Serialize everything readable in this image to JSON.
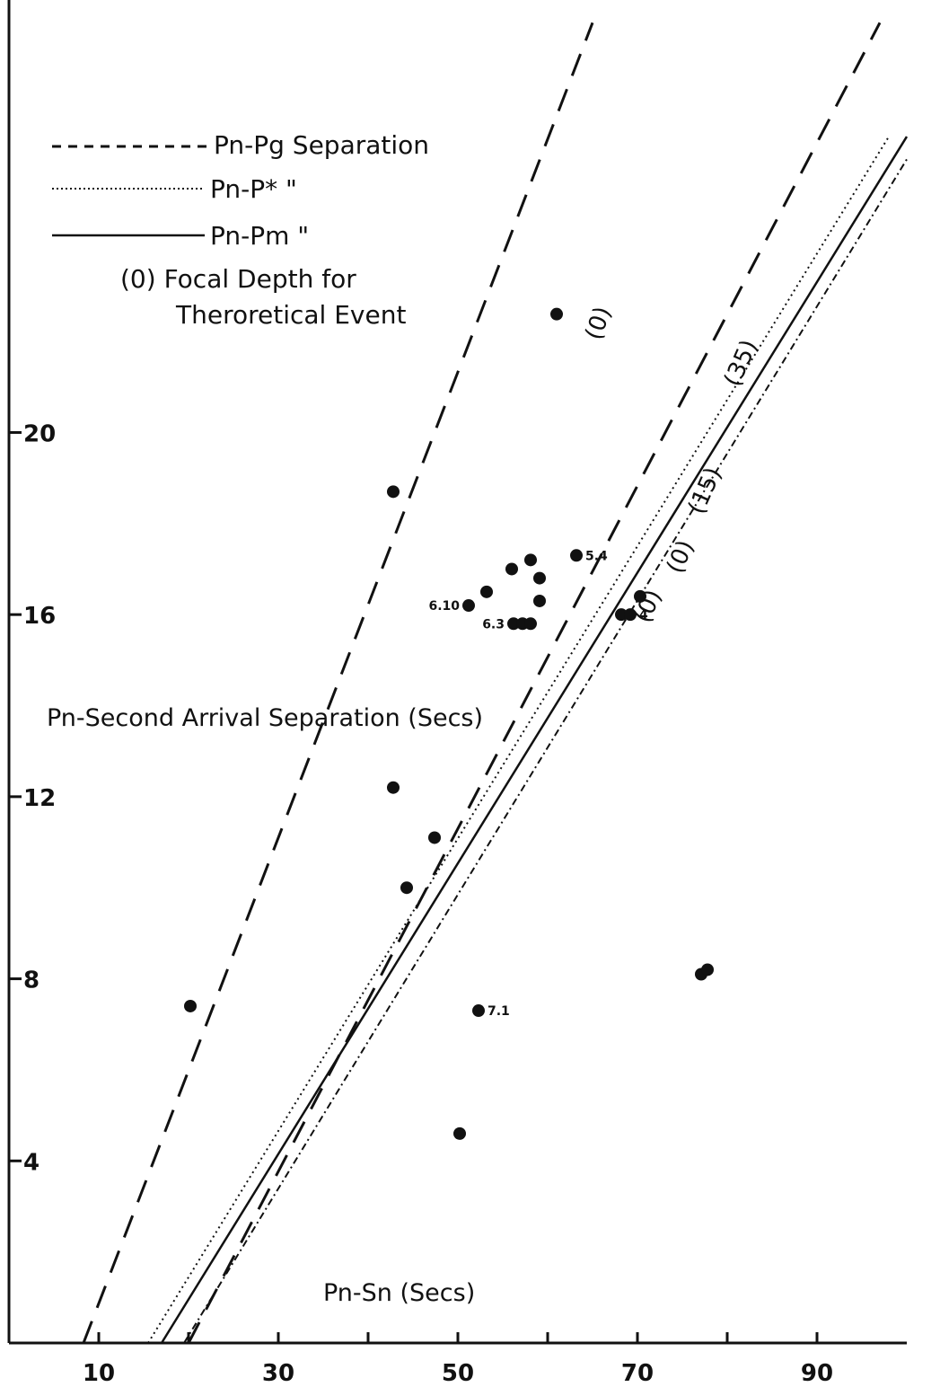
{
  "chart_data": {
    "type": "scatter",
    "xlabel": "Pn-Sn (Secs)",
    "ylabel": "Pn-Second Arrival Separation (Secs)",
    "xlim": [
      0,
      100
    ],
    "ylim": [
      0,
      29.5
    ],
    "x_ticks": [
      10,
      30,
      50,
      70,
      90
    ],
    "y_ticks": [
      4,
      8,
      12,
      16,
      20
    ],
    "legend": [
      {
        "text": "Pn-Pg Separation",
        "style": "dashed"
      },
      {
        "text": "Pn-P* \"",
        "style": "dotted"
      },
      {
        "text": "Pn-Pm \"",
        "style": "solid"
      },
      {
        "text": "(0) Focal Depth for",
        "style": "none"
      },
      {
        "text": "Theroretical Event",
        "style": "none"
      }
    ],
    "lines": [
      {
        "name": "Pn-Pg (0)",
        "style": "dashed",
        "points": [
          [
            8.3,
            0
          ],
          [
            65,
            29
          ]
        ]
      },
      {
        "name": "Pn-Pg (35)",
        "style": "dashed",
        "points": [
          [
            20,
            0
          ],
          [
            97,
            29
          ]
        ]
      },
      {
        "name": "Pn-P*",
        "style": "dotted",
        "points": [
          [
            15.5,
            0
          ],
          [
            98,
            26.5
          ]
        ]
      },
      {
        "name": "Pn-Pm",
        "style": "solid",
        "points": [
          [
            17,
            0
          ],
          [
            100,
            26.5
          ]
        ]
      },
      {
        "name": "Pn-Pm dash-dot",
        "style": "dashdot",
        "points": [
          [
            19.5,
            0
          ],
          [
            100,
            26
          ]
        ]
      }
    ],
    "depth_labels": [
      "(0)",
      "(35)",
      "(15)",
      "(0)",
      "(0)"
    ],
    "points": [
      {
        "x": 61,
        "y": 22.6
      },
      {
        "x": 42.8,
        "y": 18.7
      },
      {
        "x": 56,
        "y": 17.0
      },
      {
        "x": 58.1,
        "y": 17.2
      },
      {
        "x": 59.1,
        "y": 16.8
      },
      {
        "x": 63.2,
        "y": 17.3,
        "label": "5.4"
      },
      {
        "x": 53.2,
        "y": 16.5
      },
      {
        "x": 51.2,
        "y": 16.2,
        "label": "6.10"
      },
      {
        "x": 59.1,
        "y": 16.3
      },
      {
        "x": 56.2,
        "y": 15.8,
        "label": "6.3"
      },
      {
        "x": 57.2,
        "y": 15.8
      },
      {
        "x": 58.1,
        "y": 15.8
      },
      {
        "x": 68.2,
        "y": 16.0
      },
      {
        "x": 69.2,
        "y": 16.0,
        "label": "4"
      },
      {
        "x": 70.3,
        "y": 16.4
      },
      {
        "x": 42.8,
        "y": 12.2
      },
      {
        "x": 47.4,
        "y": 11.1
      },
      {
        "x": 44.3,
        "y": 10.0
      },
      {
        "x": 20.2,
        "y": 7.4
      },
      {
        "x": 52.3,
        "y": 7.3,
        "label": "7.1"
      },
      {
        "x": 77.1,
        "y": 8.1
      },
      {
        "x": 77.8,
        "y": 8.2
      },
      {
        "x": 50.2,
        "y": 4.6
      }
    ]
  }
}
